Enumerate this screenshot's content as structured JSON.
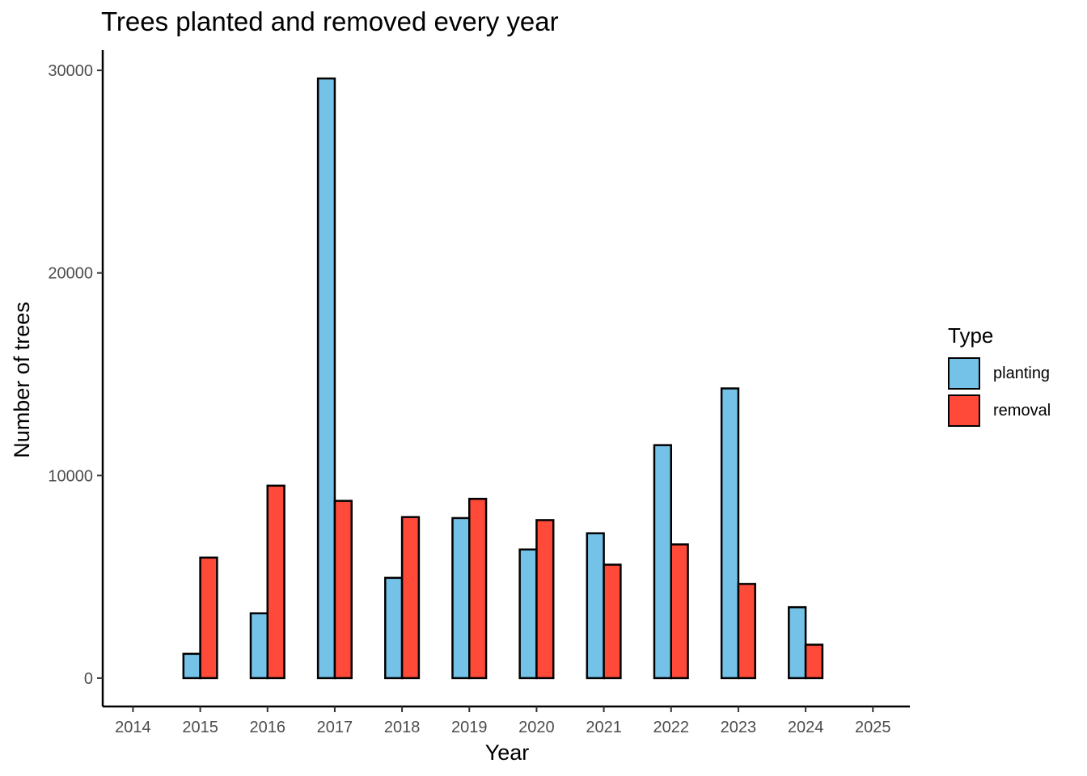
{
  "chart_data": {
    "type": "bar",
    "title": "Trees planted and removed every year",
    "xlabel": "Year",
    "ylabel": "Number of trees",
    "x_ticks": [
      "2014",
      "2015",
      "2016",
      "2017",
      "2018",
      "2019",
      "2020",
      "2021",
      "2022",
      "2023",
      "2024",
      "2025"
    ],
    "y_ticks": [
      "0",
      "10000",
      "20000",
      "30000"
    ],
    "ylim": [
      -1400,
      31000
    ],
    "xlim": [
      2013.55,
      2025.55
    ],
    "grid": false,
    "legend_title": "Type",
    "legend_position": "right",
    "categories": [
      2014,
      2015,
      2016,
      2017,
      2018,
      2019,
      2020,
      2021,
      2022,
      2023,
      2024,
      2025
    ],
    "series": [
      {
        "name": "planting",
        "color": "#75C2E8",
        "values": [
          0,
          1200,
          3200,
          29600,
          4950,
          7900,
          6350,
          7150,
          11500,
          14300,
          3500,
          0
        ]
      },
      {
        "name": "removal",
        "color": "#FF4A3A",
        "values": [
          0,
          5950,
          9500,
          8750,
          7950,
          8850,
          7800,
          5600,
          6600,
          4650,
          1650,
          0
        ]
      }
    ]
  }
}
